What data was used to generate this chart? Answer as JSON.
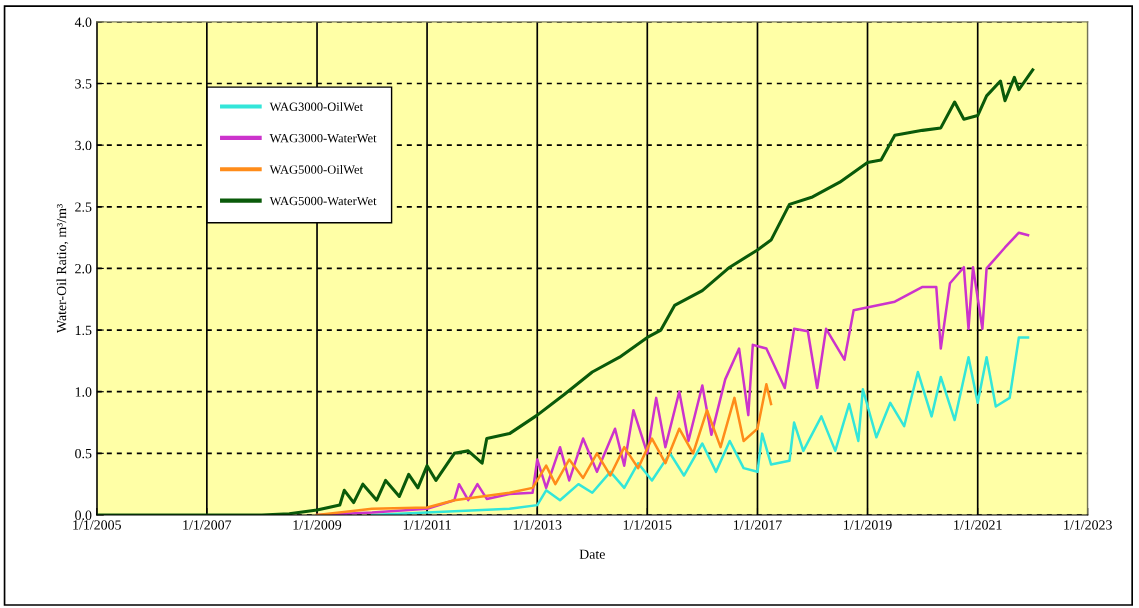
{
  "chart_data": {
    "type": "line",
    "xlabel": "Date",
    "ylabel": "Water-Oil Ratio, m³/m³",
    "xlim": [
      "2005-01-01",
      "2023-01-01"
    ],
    "xticks": [
      {
        "value": "2005-01-01",
        "label": "1/1/2005"
      },
      {
        "value": "2007-01-01",
        "label": "1/1/2007"
      },
      {
        "value": "2009-01-01",
        "label": "1/1/2009"
      },
      {
        "value": "2011-01-01",
        "label": "1/1/2011"
      },
      {
        "value": "2013-01-01",
        "label": "1/1/2013"
      },
      {
        "value": "2015-01-01",
        "label": "1/1/2015"
      },
      {
        "value": "2017-01-01",
        "label": "1/1/2017"
      },
      {
        "value": "2019-01-01",
        "label": "1/1/2019"
      },
      {
        "value": "2021-01-01",
        "label": "1/1/2021"
      },
      {
        "value": "2023-01-01",
        "label": "1/1/2023"
      }
    ],
    "ylim": [
      0,
      4
    ],
    "yticks": [
      {
        "value": 0,
        "label": "0.0"
      },
      {
        "value": 0.5,
        "label": "0.5"
      },
      {
        "value": 1,
        "label": "1.0"
      },
      {
        "value": 1.5,
        "label": "1.5"
      },
      {
        "value": 2,
        "label": "2.0"
      },
      {
        "value": 2.5,
        "label": "2.5"
      },
      {
        "value": 3,
        "label": "3.0"
      },
      {
        "value": 3.5,
        "label": "3.5"
      },
      {
        "value": 4,
        "label": "4.0"
      }
    ],
    "grid": true,
    "legend": "top left",
    "marker": "none",
    "line_style": "solid",
    "series": [
      {
        "name": "WAG3000-OilWet",
        "color": "#33e6d9",
        "x": [
          "2010-01",
          "2011-07",
          "2012-07",
          "2013-01",
          "2013-03",
          "2013-06",
          "2013-10",
          "2014-01",
          "2014-05",
          "2014-08",
          "2014-11",
          "2015-02",
          "2015-06",
          "2015-09",
          "2016-01",
          "2016-04",
          "2016-07",
          "2016-10",
          "2017-01",
          "2017-02",
          "2017-04",
          "2017-08",
          "2017-09",
          "2017-11",
          "2018-03",
          "2018-06",
          "2018-09",
          "2018-11",
          "2018-12",
          "2019-03",
          "2019-06",
          "2019-09",
          "2019-12",
          "2020-03",
          "2020-05",
          "2020-08",
          "2020-11",
          "2021-01",
          "2021-03",
          "2021-05",
          "2021-08",
          "2021-10",
          "2021-12"
        ],
        "values": [
          0,
          0.03,
          0.05,
          0.08,
          0.2,
          0.12,
          0.25,
          0.18,
          0.35,
          0.22,
          0.42,
          0.28,
          0.5,
          0.32,
          0.58,
          0.35,
          0.6,
          0.38,
          0.35,
          0.66,
          0.41,
          0.44,
          0.75,
          0.52,
          0.8,
          0.52,
          0.9,
          0.6,
          1.02,
          0.63,
          0.91,
          0.72,
          1.16,
          0.8,
          1.12,
          0.77,
          1.28,
          0.91,
          1.28,
          0.88,
          0.95,
          1.44,
          1.44
        ]
      },
      {
        "name": "WAG3000-WaterWet",
        "color": "#cc33cc",
        "x": [
          "2009-01",
          "2010-01",
          "2011-01",
          "2011-07",
          "2011-08",
          "2011-10",
          "2011-12",
          "2012-02",
          "2012-07",
          "2012-12",
          "2013-01",
          "2013-03",
          "2013-06",
          "2013-08",
          "2013-11",
          "2014-02",
          "2014-06",
          "2014-08",
          "2014-10",
          "2015-01",
          "2015-03",
          "2015-05",
          "2015-08",
          "2015-10",
          "2016-01",
          "2016-03",
          "2016-06",
          "2016-09",
          "2016-11",
          "2016-12",
          "2017-03",
          "2017-07",
          "2017-09",
          "2017-12",
          "2018-02",
          "2018-04",
          "2018-08",
          "2018-10",
          "2019-07",
          "2020-01",
          "2020-04",
          "2020-05",
          "2020-07",
          "2020-10",
          "2020-11",
          "2020-12",
          "2021-02",
          "2021-03",
          "2021-07",
          "2021-10",
          "2021-12"
        ],
        "values": [
          0,
          0.02,
          0.05,
          0.12,
          0.25,
          0.12,
          0.25,
          0.13,
          0.17,
          0.18,
          0.45,
          0.22,
          0.55,
          0.28,
          0.62,
          0.35,
          0.7,
          0.4,
          0.85,
          0.5,
          0.95,
          0.55,
          1.0,
          0.6,
          1.05,
          0.65,
          1.1,
          1.35,
          0.81,
          1.38,
          1.35,
          1.03,
          1.51,
          1.49,
          1.03,
          1.51,
          1.26,
          1.66,
          1.73,
          1.85,
          1.85,
          1.35,
          1.88,
          2.01,
          1.51,
          2.01,
          1.51,
          2.0,
          2.17,
          2.29,
          2.27
        ]
      },
      {
        "name": "WAG5000-OilWet",
        "color": "#ff8c1a",
        "x": [
          "2009-01",
          "2010-01",
          "2011-01",
          "2011-07",
          "2012-07",
          "2012-12",
          "2013-03",
          "2013-05",
          "2013-08",
          "2013-11",
          "2014-02",
          "2014-05",
          "2014-08",
          "2014-11",
          "2015-02",
          "2015-05",
          "2015-08",
          "2015-11",
          "2016-02",
          "2016-05",
          "2016-08",
          "2016-10",
          "2017-01",
          "2017-03",
          "2017-04"
        ],
        "values": [
          0,
          0.05,
          0.06,
          0.12,
          0.18,
          0.22,
          0.4,
          0.25,
          0.45,
          0.3,
          0.5,
          0.32,
          0.55,
          0.38,
          0.62,
          0.42,
          0.7,
          0.5,
          0.85,
          0.55,
          0.95,
          0.6,
          0.7,
          1.06,
          0.9
        ]
      },
      {
        "name": "WAG5000-WaterWet",
        "color": "#0a5a0a",
        "x": [
          "2005-01",
          "2008-01",
          "2008-07",
          "2009-01",
          "2009-06",
          "2009-07",
          "2009-09",
          "2009-11",
          "2010-02",
          "2010-04",
          "2010-07",
          "2010-09",
          "2010-11",
          "2011-01",
          "2011-03",
          "2011-07",
          "2011-10",
          "2012-01",
          "2012-02",
          "2012-07",
          "2013-01",
          "2013-07",
          "2014-01",
          "2014-07",
          "2015-01",
          "2015-04",
          "2015-07",
          "2016-01",
          "2016-07",
          "2017-01",
          "2017-04",
          "2017-08",
          "2018-01",
          "2018-07",
          "2019-01",
          "2019-04",
          "2019-07",
          "2020-01",
          "2020-05",
          "2020-08",
          "2020-10",
          "2021-01",
          "2021-03",
          "2021-06",
          "2021-07",
          "2021-09",
          "2021-10",
          "2022-01"
        ],
        "values": [
          0,
          0,
          0.01,
          0.04,
          0.08,
          0.2,
          0.1,
          0.25,
          0.12,
          0.28,
          0.15,
          0.33,
          0.22,
          0.4,
          0.28,
          0.5,
          0.52,
          0.42,
          0.62,
          0.66,
          0.81,
          0.98,
          1.16,
          1.28,
          1.44,
          1.5,
          1.7,
          1.82,
          2.01,
          2.15,
          2.23,
          2.52,
          2.58,
          2.7,
          2.86,
          2.88,
          3.08,
          3.12,
          3.14,
          3.35,
          3.21,
          3.24,
          3.4,
          3.52,
          3.36,
          3.55,
          3.45,
          3.61
        ]
      }
    ]
  }
}
